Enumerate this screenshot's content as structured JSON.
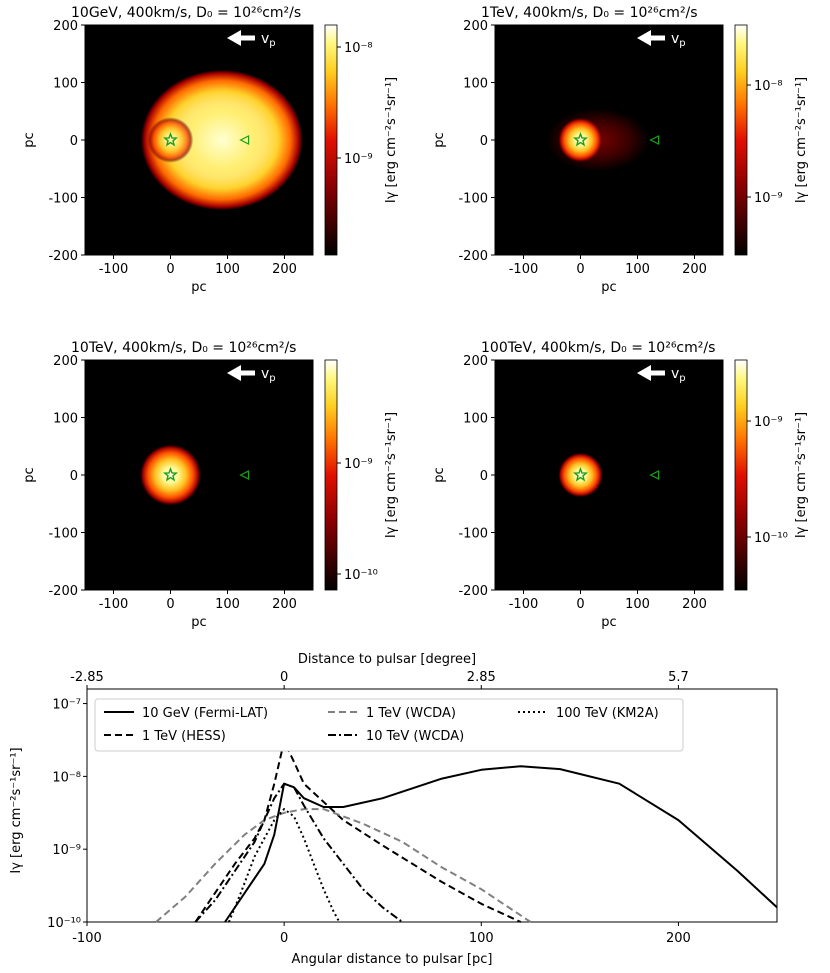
{
  "chart_data": [
    {
      "type": "heatmap",
      "title": "10GeV, 400km/s, D₀ = 10²⁶cm²/s",
      "xlabel": "pc",
      "ylabel": "pc",
      "xlim": [
        -150,
        250
      ],
      "ylim": [
        -200,
        200
      ],
      "xticks": [
        "-100",
        "0",
        "100",
        "200"
      ],
      "yticks": [
        "200",
        "100",
        "0",
        "-100",
        "-200"
      ],
      "colorbar_label": "Iγ [erg cm⁻²s⁻¹sr⁻¹]",
      "colorbar_ticks": [
        "10⁻⁸",
        "10⁻⁹"
      ],
      "arrow_label": "vp",
      "star_position": [
        0,
        0
      ],
      "triangle_position": [
        130,
        0
      ]
    },
    {
      "type": "heatmap",
      "title": "1TeV, 400km/s, D₀ = 10²⁶cm²/s",
      "xlabel": "pc",
      "ylabel": "pc",
      "xlim": [
        -150,
        250
      ],
      "ylim": [
        -200,
        200
      ],
      "xticks": [
        "-100",
        "0",
        "100",
        "200"
      ],
      "yticks": [
        "200",
        "100",
        "0",
        "-100",
        "-200"
      ],
      "colorbar_label": "Iγ [erg cm⁻²s⁻¹sr⁻¹]",
      "colorbar_ticks": [
        "10⁻⁸",
        "10⁻⁹"
      ],
      "arrow_label": "vp",
      "star_position": [
        0,
        0
      ],
      "triangle_position": [
        130,
        0
      ]
    },
    {
      "type": "heatmap",
      "title": "10TeV, 400km/s, D₀ = 10²⁶cm²/s",
      "xlabel": "pc",
      "ylabel": "pc",
      "xlim": [
        -150,
        250
      ],
      "ylim": [
        -200,
        200
      ],
      "xticks": [
        "-100",
        "0",
        "100",
        "200"
      ],
      "yticks": [
        "200",
        "100",
        "0",
        "-100",
        "-200"
      ],
      "colorbar_label": "Iγ [erg cm⁻²s⁻¹sr⁻¹]",
      "colorbar_ticks": [
        "10⁻⁹",
        "10⁻¹⁰"
      ],
      "arrow_label": "vp",
      "star_position": [
        0,
        0
      ],
      "triangle_position": [
        130,
        0
      ]
    },
    {
      "type": "heatmap",
      "title": "100TeV, 400km/s, D₀ = 10²⁶cm²/s",
      "xlabel": "pc",
      "ylabel": "pc",
      "xlim": [
        -150,
        250
      ],
      "ylim": [
        -200,
        200
      ],
      "xticks": [
        "-100",
        "0",
        "100",
        "200"
      ],
      "yticks": [
        "200",
        "100",
        "0",
        "-100",
        "-200"
      ],
      "colorbar_label": "Iγ [erg cm⁻²s⁻¹sr⁻¹]",
      "colorbar_ticks": [
        "10⁻⁹",
        "10⁻¹⁰"
      ],
      "arrow_label": "vp",
      "star_position": [
        0,
        0
      ],
      "triangle_position": [
        130,
        0
      ]
    },
    {
      "type": "line",
      "xlabel": "Angular distance to pulsar [pc]",
      "ylabel": "Iγ [erg cm⁻²s⁻¹sr⁻¹]",
      "top_xlabel": "Distance to pulsar [degree]",
      "top_xticks": [
        "-2.85",
        "0",
        "2.85",
        "5.7"
      ],
      "xticks": [
        "-100",
        "0",
        "100",
        "200"
      ],
      "yticks": [
        "10⁻⁷",
        "10⁻⁸",
        "10⁻⁹",
        "10⁻¹⁰"
      ],
      "xlim": [
        -100,
        250
      ],
      "ylim_log10": [
        -10,
        -6.8
      ],
      "series": [
        {
          "name": "10 GeV (Fermi-LAT)",
          "color": "#000000",
          "dash": "solid",
          "x": [
            -30,
            -20,
            -10,
            -5,
            0,
            5,
            10,
            20,
            30,
            50,
            80,
            100,
            120,
            140,
            170,
            200,
            230,
            250
          ],
          "log_values": [
            -10,
            -9.6,
            -9.2,
            -8.8,
            -8.1,
            -8.15,
            -8.3,
            -8.42,
            -8.42,
            -8.3,
            -8.03,
            -7.91,
            -7.86,
            -7.9,
            -8.1,
            -8.6,
            -9.3,
            -9.8
          ]
        },
        {
          "name": "1 TeV (HESS)",
          "color": "#000000",
          "dash": "dashed",
          "x": [
            -45,
            -35,
            -25,
            -15,
            -10,
            -5,
            0,
            5,
            10,
            20,
            30,
            50,
            80,
            100,
            120
          ],
          "log_values": [
            -10,
            -9.6,
            -9.2,
            -8.85,
            -8.6,
            -8.1,
            -7.52,
            -7.8,
            -8.1,
            -8.35,
            -8.6,
            -8.95,
            -9.45,
            -9.75,
            -10
          ]
        },
        {
          "name": "1 TeV (WCDA)",
          "color": "#808080",
          "dash": "dashed",
          "x": [
            -65,
            -50,
            -35,
            -20,
            -10,
            0,
            10,
            20,
            30,
            40,
            60,
            80,
            100,
            125
          ],
          "log_values": [
            -10,
            -9.65,
            -9.2,
            -8.8,
            -8.6,
            -8.5,
            -8.45,
            -8.45,
            -8.55,
            -8.65,
            -8.9,
            -9.25,
            -9.55,
            -10
          ]
        },
        {
          "name": "10 TeV (WCDA)",
          "color": "#000000",
          "dash": "dashdot",
          "x": [
            -45,
            -35,
            -25,
            -15,
            -10,
            -5,
            0,
            5,
            10,
            20,
            30,
            40,
            50,
            60
          ],
          "log_values": [
            -10,
            -9.7,
            -9.3,
            -8.9,
            -8.6,
            -8.3,
            -8.1,
            -8.15,
            -8.4,
            -8.85,
            -9.2,
            -9.55,
            -9.8,
            -10
          ]
        },
        {
          "name": "100 TeV (KM2A)",
          "color": "#000000",
          "dash": "dotted",
          "x": [
            -28,
            -22,
            -15,
            -10,
            -5,
            0,
            5,
            10,
            15,
            20,
            25,
            28
          ],
          "log_values": [
            -10,
            -9.6,
            -9.1,
            -8.85,
            -8.6,
            -8.45,
            -8.55,
            -8.85,
            -9.2,
            -9.55,
            -9.85,
            -10
          ]
        }
      ]
    }
  ]
}
